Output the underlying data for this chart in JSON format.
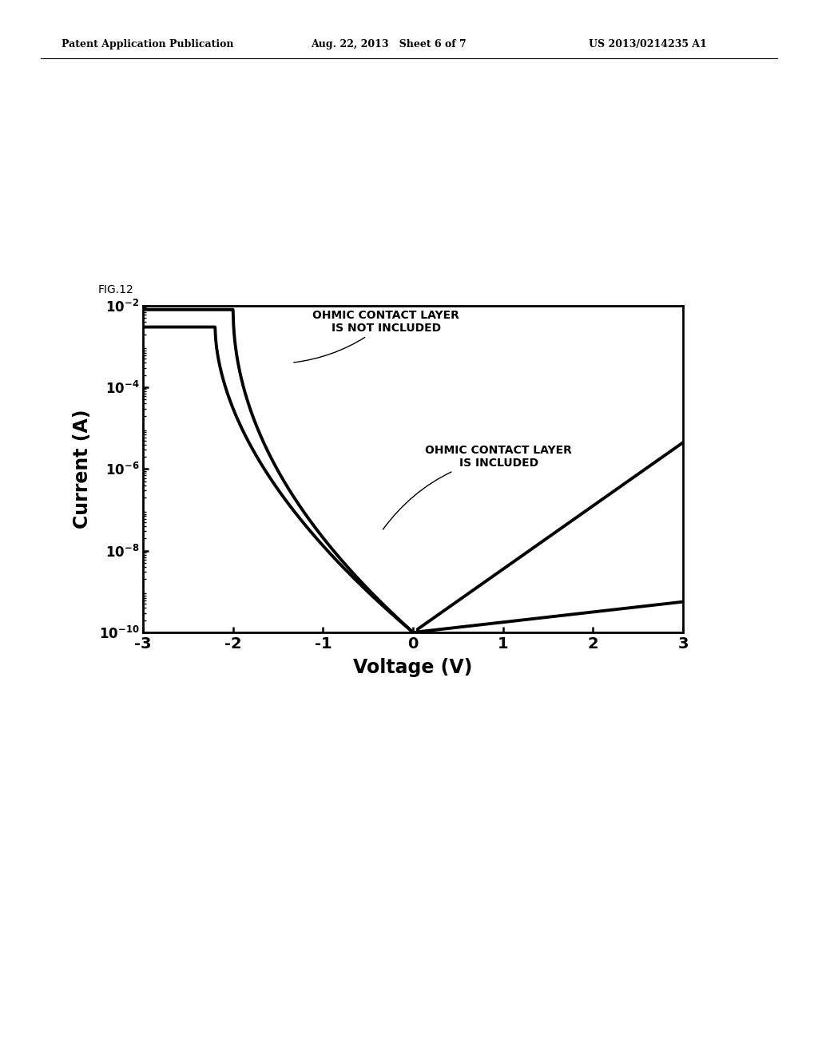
{
  "title": "FIG.12",
  "xlabel": "Voltage (V)",
  "ylabel": "Current (A)",
  "xlim": [
    -3,
    3
  ],
  "ytick_exponents": [
    -10,
    -8,
    -6,
    -4,
    -2
  ],
  "xticks": [
    -3,
    -2,
    -1,
    0,
    1,
    2,
    3
  ],
  "background_color": "#ffffff",
  "line_color": "#000000",
  "header_left": "Patent Application Publication",
  "header_center": "Aug. 22, 2013   Sheet 6 of 7",
  "header_right": "US 2013/0214235 A1",
  "annotation1": "OHMIC CONTACT LAYER\nIS NOT INCLUDED",
  "annotation2": "OHMIC CONTACT LAYER\nIS INCLUDED",
  "fig_label": "FIG.12"
}
